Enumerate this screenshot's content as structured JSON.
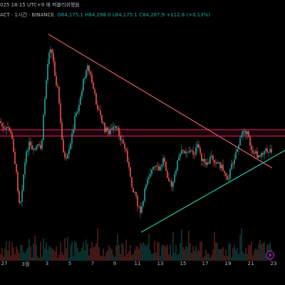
{
  "header": {
    "timestamp": "025 18:15 UTC+9 에 퍼블리쉬했음",
    "symbol": "ACT · 1시간 · BINANCE",
    "ohlc": "O84,175.1 H84,288.0 L84,175.1 C84,287.9 +112.8 (+0.13%)"
  },
  "xaxis": {
    "ticks": [
      "27",
      "3월",
      "3",
      "5",
      "7",
      "9",
      "11",
      "13",
      "15",
      "17",
      "19",
      "21",
      "23"
    ]
  },
  "colors": {
    "up": "#26a69a",
    "down": "#ef5350",
    "resistance_line": "#e05a6a",
    "support_line": "#26c6a0",
    "zone": "#d81b60"
  },
  "icons": {
    "alert": "lightning-icon"
  },
  "alert_glyph": "⚡"
}
